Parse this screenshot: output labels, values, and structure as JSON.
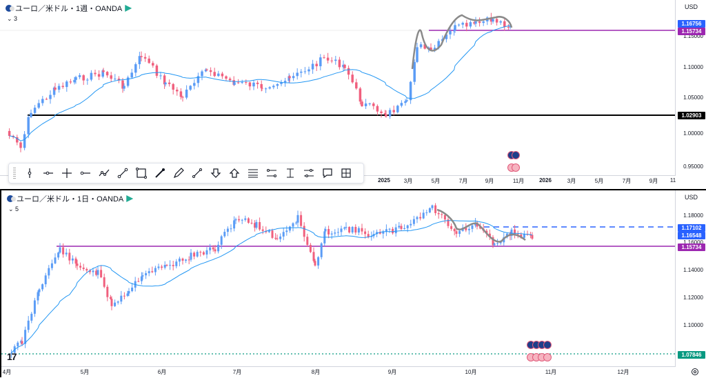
{
  "top_chart": {
    "legend_title": "ユーロ／米ドル・1週・OANDA",
    "interval_count": "3",
    "currency": "USD",
    "price_ticks": [
      "1.15000",
      "1.10000",
      "1.05000",
      "1.00000",
      "0.95000"
    ],
    "time_ticks": [
      "2025",
      "3月",
      "5月",
      "7月",
      "9月",
      "11月",
      "2026",
      "3月",
      "5月",
      "7月",
      "9月",
      "11"
    ],
    "price_tags": [
      {
        "label": "1.16756",
        "color": "#2962ff"
      },
      {
        "label": "1.15734",
        "color": "#9c27b0"
      },
      {
        "label": "1.02903",
        "color": "#000000"
      }
    ],
    "colors": {
      "up": "#5b9cf6",
      "down": "#f0607e",
      "ma": "#2196f3",
      "hline_purple": "#9c27b0",
      "hline_black": "#000000"
    }
  },
  "bottom_chart": {
    "legend_title": "ユーロ／米ドル・1日・OANDA",
    "interval_count": "5",
    "currency": "USD",
    "price_ticks": [
      "1.18000",
      "1.16000",
      "1.14000",
      "1.12000",
      "1.10000"
    ],
    "time_ticks": [
      "4月",
      "5月",
      "6月",
      "7月",
      "8月",
      "9月",
      "10月",
      "11月",
      "12月"
    ],
    "price_tags": [
      {
        "label": "1.17102",
        "color": "#2962ff"
      },
      {
        "label": "1.16548",
        "color": "#2962ff"
      },
      {
        "label": "1.15734",
        "color": "#9c27b0"
      },
      {
        "label": "1.07846",
        "color": "#089981"
      }
    ],
    "logo": "17",
    "colors": {
      "up": "#5b9cf6",
      "down": "#f0607e",
      "ma": "#2196f3",
      "hline_purple": "#9c27b0",
      "dashed_blue": "#2962ff",
      "dotted_green": "#089981"
    }
  },
  "toolbar_icons": [
    "vertical-line-icon",
    "horizontal-ray-icon",
    "cross-line-icon",
    "horizontal-line-icon",
    "path-icon",
    "trend-line-icon",
    "rectangle-icon",
    "brush-icon",
    "pen-icon",
    "arrow-line-icon",
    "arrow-down-icon",
    "arrow-up-icon",
    "fib-retracement-icon",
    "parallel-channel-icon",
    "price-range-icon",
    "date-range-icon",
    "callout-icon",
    "long-position-icon"
  ]
}
